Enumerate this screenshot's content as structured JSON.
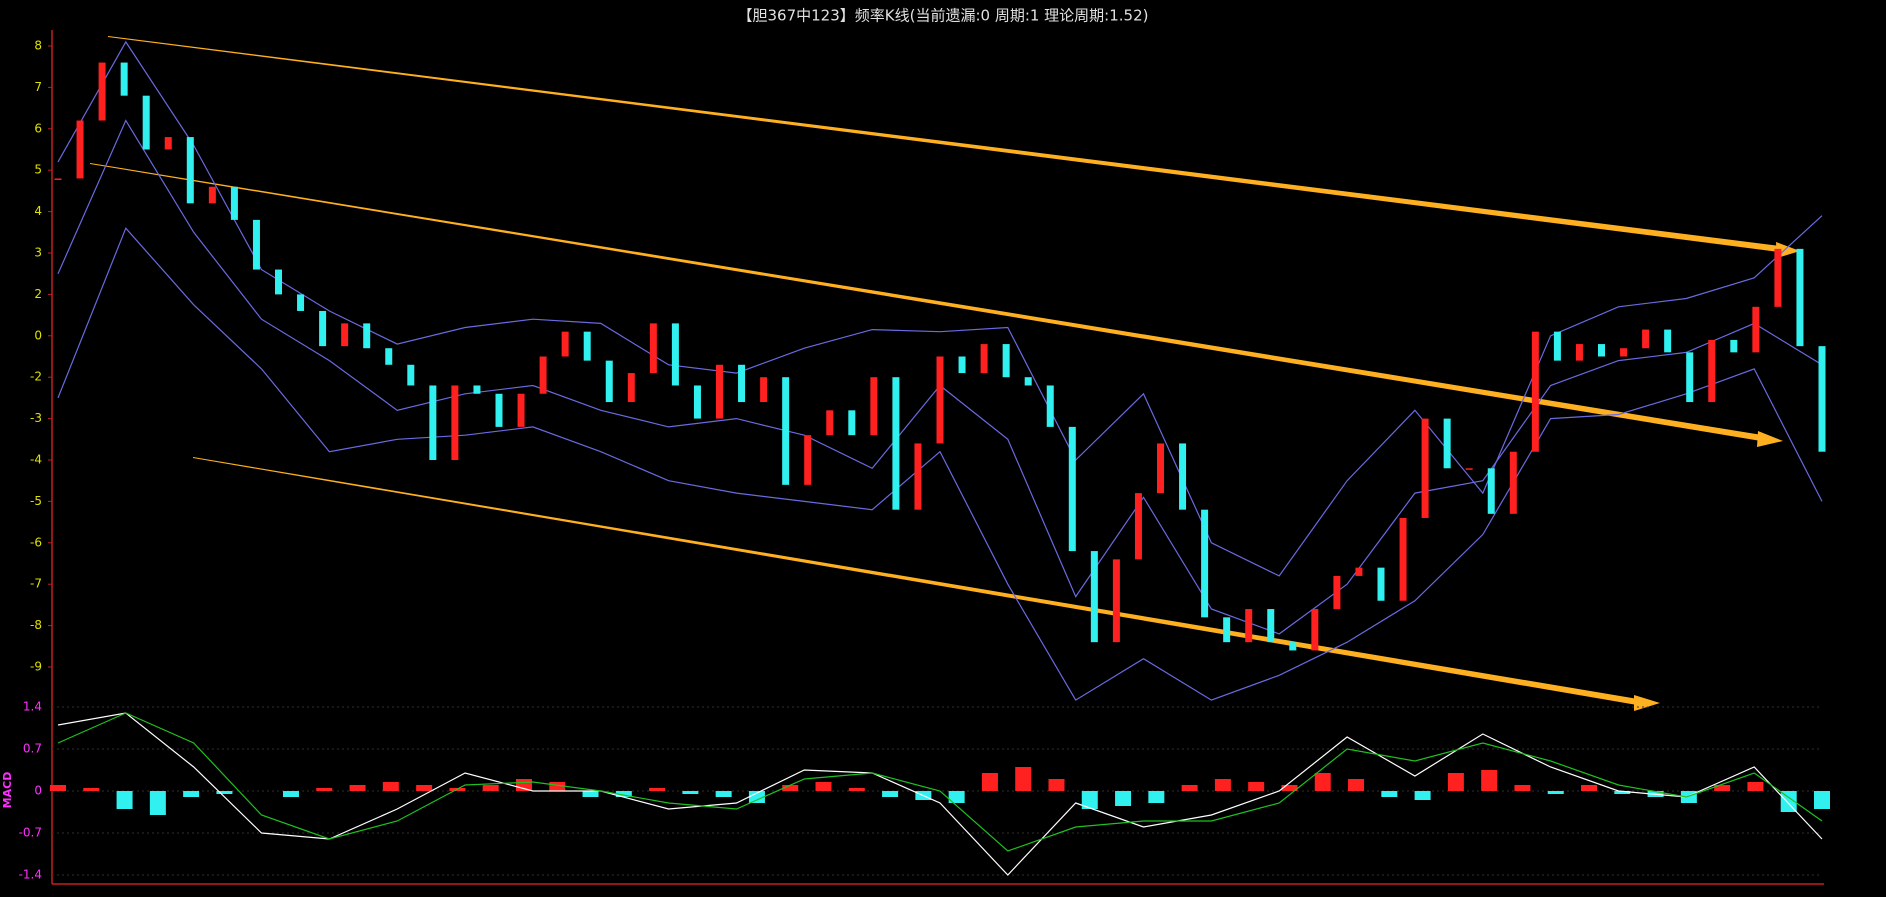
{
  "chart_data": [
    {
      "type": "candlestick",
      "title": "【胆367中123】频率K线(当前遗漏:0 周期:1 理论周期:1.52)",
      "close": [
        4.8,
        6.2,
        7.6,
        6.8,
        5.5,
        5.8,
        4.2,
        4.6,
        3.8,
        2.6,
        2,
        1.2,
        -0.5,
        0.6,
        -0.6,
        -1.4,
        -2.2,
        -4,
        -2.2,
        -2.4,
        -3.2,
        -2.4,
        -1,
        0.2,
        -1.2,
        -2.6,
        -1.8,
        0.6,
        -2.2,
        -3,
        -1.4,
        -2.6,
        -2,
        -4.6,
        -3.4,
        -2.8,
        -3.4,
        -2,
        -5.2,
        -3.6,
        -1,
        -1.8,
        -0.4,
        -2,
        -2.2,
        -3.2,
        -6.2,
        -8.4,
        -6.4,
        -4.8,
        -3.6,
        -5.2,
        -7.8,
        -8.4,
        -7.6,
        -8.4,
        -8.6,
        -7.6,
        -6.8,
        -6.6,
        -7.4,
        -5.4,
        -3,
        -4.2,
        -4.2,
        -5.3,
        -3.8,
        0.2,
        -1.2,
        -0.4,
        -1,
        -0.6,
        0.3,
        -0.8,
        -2.6,
        -0.2,
        -0.8,
        1.4,
        3.1,
        -0.5,
        -3.8
      ],
      "up_color": "#ff2020",
      "down_color": "#30f0f0",
      "series": [
        {
          "color": "#6a6ae0",
          "values": [
            5.2,
            8.1,
            5.6,
            2.6,
            1.2,
            -0.4,
            0.4,
            0.8,
            0.6,
            -1.4,
            -1.8,
            -0.6,
            0.3,
            0.2,
            0.4,
            -4,
            -2.4,
            -6,
            -6.8,
            -4.5,
            -2.8,
            -4.8,
            0,
            1.4,
            1.8,
            2.4,
            3.9
          ]
        },
        {
          "color": "#6a6ae0",
          "values": [
            2.5,
            6.2,
            3.5,
            0.8,
            -1.2,
            -2.8,
            -2.4,
            -2.2,
            -2.8,
            -3.2,
            -3.0,
            -3.4,
            -4.2,
            -2.2,
            -3.5,
            -7.3,
            -4.9,
            -7.6,
            -8.2,
            -7,
            -4.8,
            -4.5,
            -2.2,
            -1.2,
            -0.8,
            0.6,
            -1.4
          ]
        },
        {
          "color": "#6a6ae0",
          "values": [
            -2.5,
            3.6,
            1.5,
            -1.6,
            -3.8,
            -3.5,
            -3.4,
            -3.2,
            -3.8,
            -4.5,
            -4.8,
            -5.0,
            -5.2,
            -3.8,
            -7.0,
            -9.8,
            -8.8,
            -9.8,
            -9.2,
            -8.4,
            -7.4,
            -5.8,
            -3,
            -2.9,
            -2.4,
            -1.6,
            -5
          ]
        }
      ],
      "ylim": [
        -9.6,
        8.4
      ],
      "yticks": [
        8,
        7,
        6,
        5,
        4,
        3,
        2,
        0,
        -2,
        -3,
        -4,
        -5,
        -6,
        -7,
        -8,
        -9
      ]
    },
    {
      "type": "macd",
      "ylabel": "MACD",
      "series": [
        {
          "color": "#ffffff",
          "values": [
            1.1,
            1.3,
            0.4,
            -0.7,
            -0.8,
            -0.3,
            0.3,
            0.0,
            0.0,
            -0.3,
            -0.2,
            0.35,
            0.3,
            -0.2,
            -1.4,
            -0.2,
            -0.6,
            -0.4,
            0.0,
            0.9,
            0.25,
            0.95,
            0.4,
            0.0,
            -0.1,
            0.4,
            -0.8
          ]
        },
        {
          "color": "#20c020",
          "values": [
            0.8,
            1.3,
            0.8,
            -0.4,
            -0.8,
            -0.5,
            0.1,
            0.15,
            0.0,
            -0.2,
            -0.3,
            0.2,
            0.3,
            0.0,
            -1.0,
            -0.6,
            -0.5,
            -0.5,
            -0.2,
            0.7,
            0.5,
            0.8,
            0.5,
            0.1,
            -0.1,
            0.3,
            -0.5
          ]
        }
      ],
      "histogram": [
        0.1,
        0.05,
        -0.3,
        -0.4,
        -0.1,
        -0.05,
        0.0,
        -0.1,
        0.05,
        0.1,
        0.15,
        0.1,
        0.05,
        0.1,
        0.2,
        0.15,
        -0.1,
        -0.1,
        0.05,
        -0.05,
        -0.1,
        -0.2,
        0.1,
        0.15,
        0.05,
        -0.1,
        -0.15,
        -0.2,
        0.3,
        0.4,
        0.2,
        -0.3,
        -0.25,
        -0.2,
        0.1,
        0.2,
        0.15,
        0.1,
        0.3,
        0.2,
        -0.1,
        -0.15,
        0.3,
        0.35,
        0.1,
        -0.05,
        0.1,
        -0.05,
        -0.1,
        -0.2,
        0.1,
        0.15,
        -0.35,
        -0.3
      ],
      "up_color": "#ff2020",
      "down_color": "#30f0f0",
      "ylim": [
        -1.55,
        1.55
      ],
      "yticks": [
        1.4,
        0.7,
        0,
        -0.7,
        -1.4
      ],
      "grid": true
    }
  ]
}
